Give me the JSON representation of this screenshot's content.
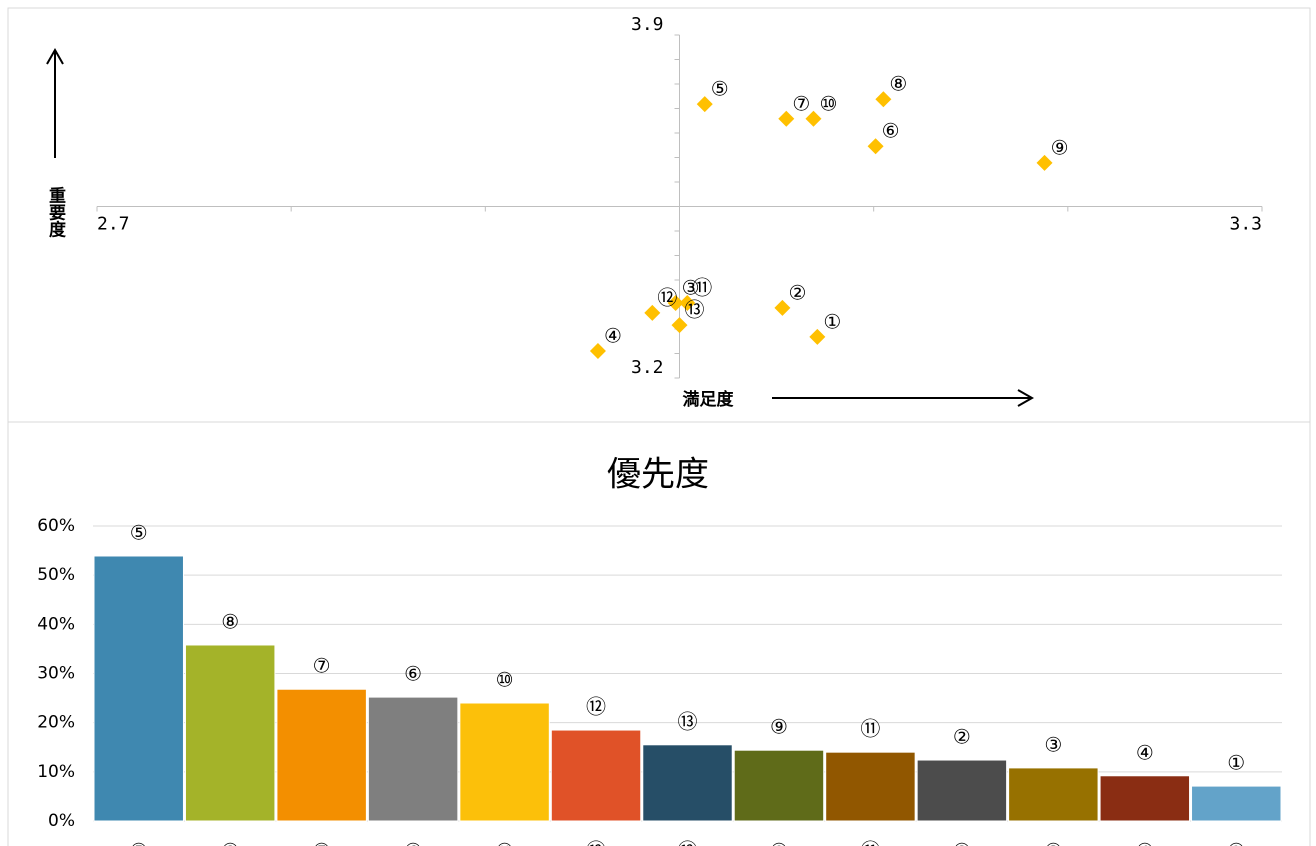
{
  "chart_data": [
    {
      "type": "scatter",
      "x_label": "満足度",
      "y_label": "重要度",
      "xlim": [
        2.7,
        3.3
      ],
      "ylim": [
        3.2,
        3.9
      ],
      "xticks": [
        2.7,
        3.3
      ],
      "yticks": [
        3.2,
        3.9
      ],
      "x_minor_ticks": [
        2.8,
        2.9,
        3.0,
        3.1,
        3.2
      ],
      "y_minor_ticks": [
        3.25,
        3.3,
        3.35,
        3.4,
        3.45,
        3.5,
        3.55,
        3.6,
        3.65,
        3.7,
        3.75,
        3.8,
        3.85
      ],
      "axis_cross": {
        "x": 3.0,
        "y": 3.55
      },
      "color": "#ffc000",
      "points": [
        {
          "label": "①",
          "x": 3.071,
          "y": 3.284
        },
        {
          "label": "②",
          "x": 3.053,
          "y": 3.343
        },
        {
          "label": "③",
          "x": 2.998,
          "y": 3.353
        },
        {
          "label": "④",
          "x": 2.958,
          "y": 3.255
        },
        {
          "label": "⑤",
          "x": 3.013,
          "y": 3.759
        },
        {
          "label": "⑥",
          "x": 3.101,
          "y": 3.673
        },
        {
          "label": "⑦",
          "x": 3.055,
          "y": 3.729
        },
        {
          "label": "⑧",
          "x": 3.105,
          "y": 3.769
        },
        {
          "label": "⑨",
          "x": 3.188,
          "y": 3.639
        },
        {
          "label": "⑩",
          "x": 3.069,
          "y": 3.729
        },
        {
          "label": "⑪",
          "x": 3.004,
          "y": 3.353
        },
        {
          "label": "⑫",
          "x": 2.986,
          "y": 3.333
        },
        {
          "label": "⑬",
          "x": 3.0,
          "y": 3.308
        }
      ]
    },
    {
      "type": "bar",
      "title": "優先度",
      "categories": [
        "⑤",
        "⑧",
        "⑦",
        "⑥",
        "⑩",
        "⑫",
        "⑬",
        "⑨",
        "⑪",
        "②",
        "③",
        "④",
        "①"
      ],
      "values": [
        53.9,
        35.8,
        26.8,
        25.2,
        24.0,
        18.5,
        15.5,
        14.4,
        14.0,
        12.4,
        10.8,
        9.2,
        7.1
      ],
      "colors": [
        "#3f88b0",
        "#a4b329",
        "#f38f00",
        "#7f7f7f",
        "#fcc00a",
        "#e05228",
        "#264e67",
        "#5f6b19",
        "#915700",
        "#4c4c4c",
        "#977100",
        "#8a2d13",
        "#63a3c9"
      ],
      "ylim": [
        0,
        60
      ],
      "yticks": [
        {
          "value": 0,
          "label": "0%"
        },
        {
          "value": 10,
          "label": "10%"
        },
        {
          "value": 20,
          "label": "20%"
        },
        {
          "value": 30,
          "label": "30%"
        },
        {
          "value": 40,
          "label": "40%"
        },
        {
          "value": 50,
          "label": "50%"
        },
        {
          "value": 60,
          "label": "60%"
        }
      ],
      "grid": true
    }
  ]
}
